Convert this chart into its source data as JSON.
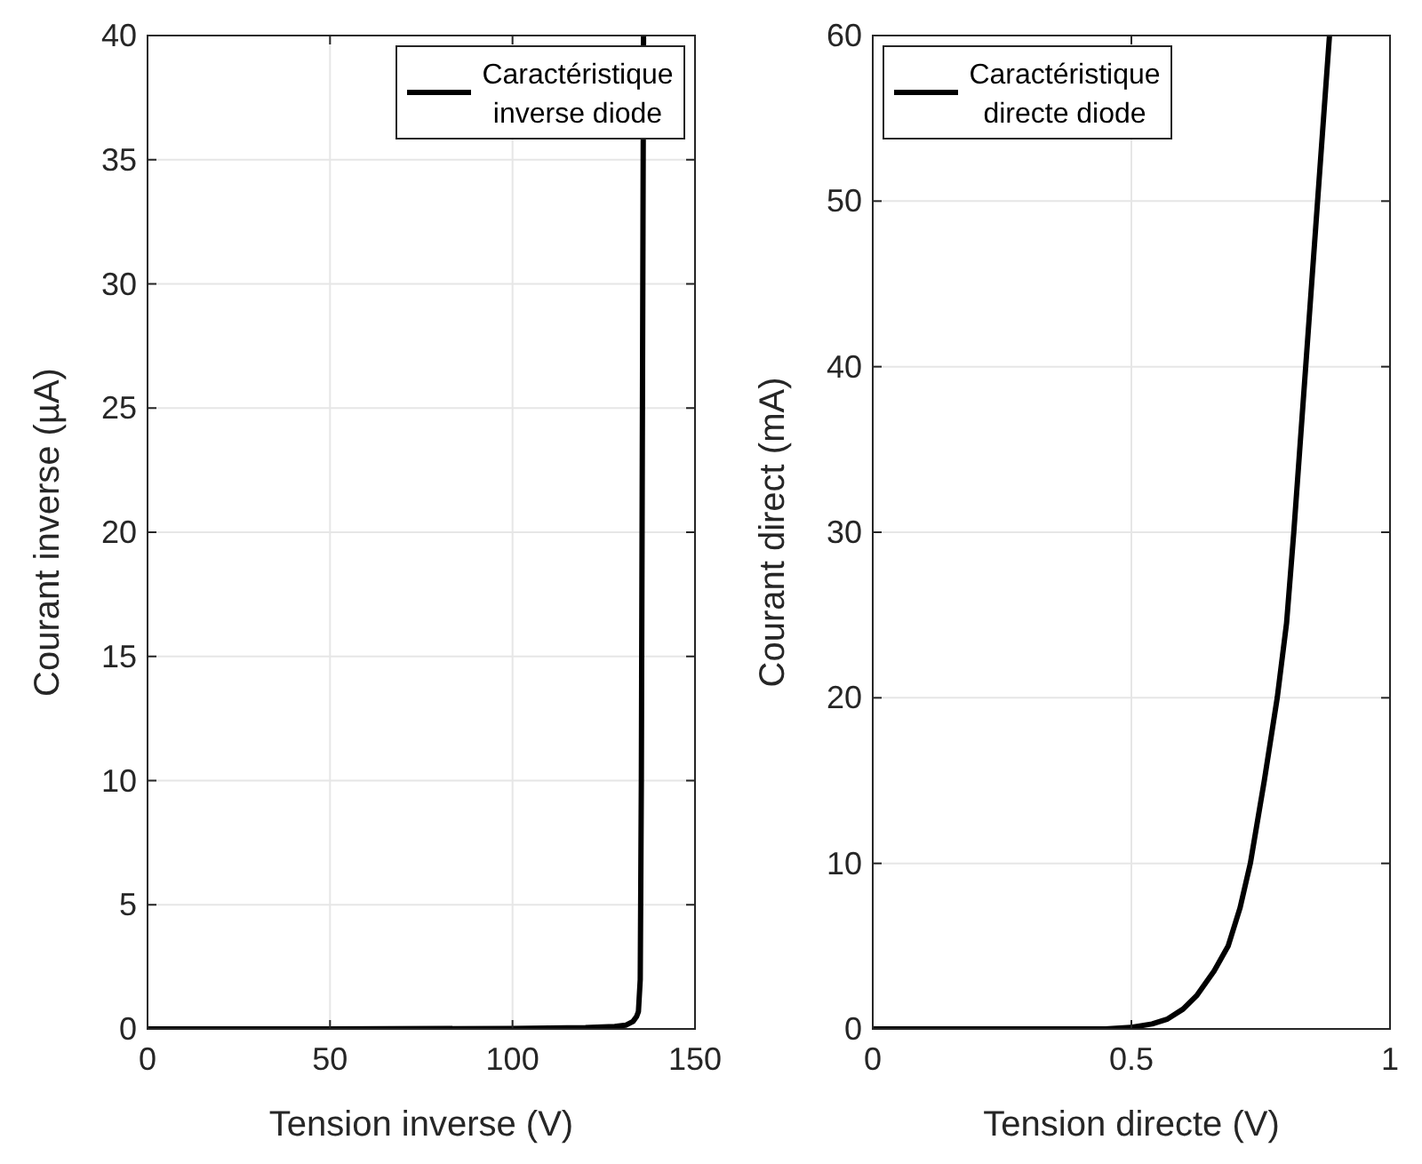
{
  "chart_data": [
    {
      "type": "line",
      "xlabel": "Tension inverse (V)",
      "ylabel": "Courant inverse (µA)",
      "xlim": [
        0,
        150
      ],
      "xticks": [
        0,
        50,
        100,
        150
      ],
      "ylim": [
        0,
        40
      ],
      "yticks": [
        0,
        5,
        10,
        15,
        20,
        25,
        30,
        35,
        40
      ],
      "grid": true,
      "legend": "top right",
      "line_style": "solid",
      "series": [
        {
          "name": "Caractéristique inverse diode",
          "color": "#000000",
          "x": [
            0,
            50,
            100,
            120,
            128,
            131,
            133,
            134,
            134.5,
            135,
            135.3,
            135.6,
            135.9
          ],
          "values": [
            0,
            0,
            0.02,
            0.05,
            0.1,
            0.15,
            0.3,
            0.5,
            0.7,
            2,
            10,
            25,
            40
          ]
        }
      ]
    },
    {
      "type": "line",
      "xlabel": "Tension directe (V)",
      "ylabel": "Courant direct (mA)",
      "xlim": [
        0,
        1
      ],
      "xticks": [
        0,
        0.5,
        1
      ],
      "ylim": [
        0,
        60
      ],
      "yticks": [
        0,
        10,
        20,
        30,
        40,
        50,
        60
      ],
      "grid": true,
      "legend": "top left",
      "line_style": "solid",
      "series": [
        {
          "name": "Caractéristique directe diode",
          "color": "#000000",
          "x": [
            0,
            0.3,
            0.45,
            0.5,
            0.54,
            0.57,
            0.6,
            0.626,
            0.66,
            0.687,
            0.71,
            0.73,
            0.757,
            0.782,
            0.8,
            0.814,
            0.837,
            0.86,
            0.883
          ],
          "values": [
            0,
            0,
            0,
            0.1,
            0.3,
            0.6,
            1.2,
            2,
            3.5,
            5,
            7.3,
            10,
            15,
            20,
            24.5,
            30,
            40,
            50,
            60
          ]
        }
      ]
    }
  ]
}
